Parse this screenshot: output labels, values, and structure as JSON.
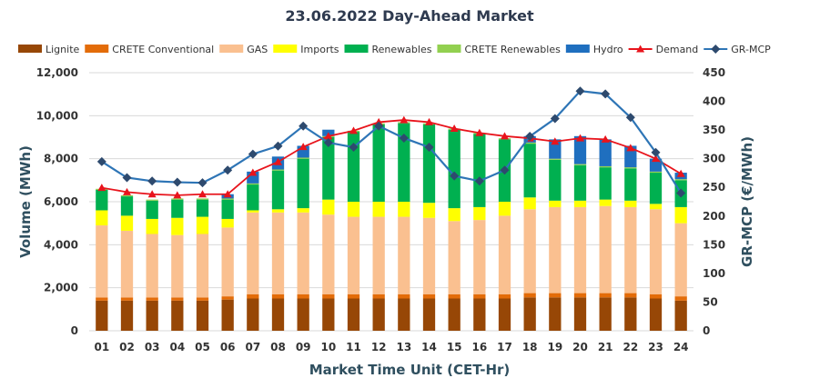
{
  "chart_data": {
    "type": "bar",
    "stacked": true,
    "title": "23.06.2022  Day-Ahead Market",
    "xlabel": "Market Time Unit (CET-Hr)",
    "ylabel": "Volume (MWh)",
    "y2label": "GR-MCP (€/MWh)",
    "ylim": [
      0,
      12000
    ],
    "y2lim": [
      0,
      450
    ],
    "yticks": [
      "0",
      "2,000",
      "4,000",
      "6,000",
      "8,000",
      "10,000",
      "12,000"
    ],
    "y2ticks": [
      "0",
      "50",
      "100",
      "150",
      "200",
      "250",
      "300",
      "350",
      "400",
      "450"
    ],
    "categories": [
      "01",
      "02",
      "03",
      "04",
      "05",
      "06",
      "07",
      "08",
      "09",
      "10",
      "11",
      "12",
      "13",
      "14",
      "15",
      "16",
      "17",
      "18",
      "19",
      "20",
      "21",
      "22",
      "23",
      "24"
    ],
    "series": [
      {
        "name": "Lignite",
        "kind": "bar",
        "color": "#974706",
        "values": [
          1400,
          1400,
          1400,
          1400,
          1400,
          1450,
          1500,
          1500,
          1500,
          1500,
          1500,
          1500,
          1500,
          1500,
          1500,
          1500,
          1500,
          1550,
          1550,
          1550,
          1550,
          1550,
          1500,
          1400
        ]
      },
      {
        "name": "CRETE Conventional",
        "kind": "bar",
        "color": "#e36c09",
        "values": [
          150,
          150,
          150,
          150,
          150,
          150,
          200,
          200,
          200,
          200,
          200,
          200,
          200,
          200,
          200,
          200,
          200,
          200,
          200,
          200,
          200,
          200,
          200,
          200
        ]
      },
      {
        "name": "GAS",
        "kind": "bar",
        "color": "#fac090",
        "values": [
          3350,
          3100,
          2950,
          2900,
          2950,
          3200,
          3800,
          3800,
          3800,
          3700,
          3600,
          3600,
          3600,
          3550,
          3400,
          3450,
          3650,
          3900,
          4000,
          4000,
          4050,
          4000,
          3950,
          3400
        ]
      },
      {
        "name": "Imports",
        "kind": "bar",
        "color": "#ffff00",
        "values": [
          700,
          700,
          700,
          800,
          800,
          400,
          100,
          150,
          200,
          700,
          700,
          700,
          700,
          700,
          600,
          600,
          650,
          550,
          300,
          300,
          300,
          300,
          250,
          750
        ]
      },
      {
        "name": "Renewables",
        "kind": "bar",
        "color": "#00b050",
        "values": [
          950,
          900,
          850,
          850,
          800,
          900,
          1200,
          1800,
          2300,
          2900,
          3250,
          3600,
          3650,
          3650,
          3650,
          3400,
          2900,
          2500,
          1900,
          1650,
          1500,
          1500,
          1450,
          1250
        ]
      },
      {
        "name": "CRETE Renewables",
        "kind": "bar",
        "color": "#92d050",
        "values": [
          50,
          50,
          50,
          50,
          50,
          50,
          50,
          50,
          50,
          50,
          50,
          50,
          50,
          50,
          50,
          50,
          50,
          50,
          50,
          50,
          50,
          50,
          50,
          50
        ]
      },
      {
        "name": "Hydro",
        "kind": "bar",
        "color": "#1f6fbf",
        "values": [
          0,
          0,
          0,
          0,
          0,
          200,
          550,
          600,
          550,
          300,
          0,
          0,
          0,
          0,
          0,
          0,
          0,
          300,
          900,
          1300,
          1250,
          1000,
          600,
          300
        ]
      },
      {
        "name": "Demand",
        "kind": "line",
        "axis": "left",
        "color": "#e8141c",
        "marker": "triangle",
        "values": [
          6650,
          6450,
          6350,
          6300,
          6350,
          6350,
          7350,
          7850,
          8550,
          9050,
          9300,
          9700,
          9800,
          9700,
          9400,
          9200,
          9050,
          8950,
          8800,
          8950,
          8900,
          8500,
          8000,
          7300
        ]
      },
      {
        "name": "GR-MCP",
        "kind": "line",
        "axis": "right",
        "color": "#2e75b6",
        "marker": "diamond",
        "values": [
          295,
          267,
          261,
          259,
          258,
          280,
          308,
          322,
          357,
          328,
          320,
          357,
          336,
          320,
          270,
          261,
          280,
          339,
          370,
          418,
          413,
          372,
          311,
          240
        ]
      }
    ],
    "legend_position": "top"
  }
}
